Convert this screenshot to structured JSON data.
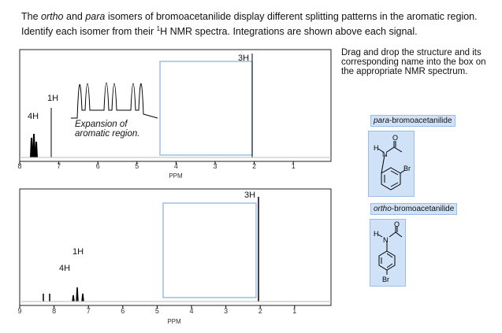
{
  "question": [
    "The ",
    "ortho",
    " and ",
    "para",
    " isomers of bromoacetanilide display different splitting patterns in the aromatic region. Identify each isomer from their ",
    "1",
    "H NMR spectra. Integrations are shown above each signal."
  ],
  "instructions": "Drag and drop the structure and its corresponding name into the box on the appropriate NMR spectrum.",
  "spectra": [
    {
      "integrations": [
        "4H",
        "1H",
        "3H"
      ],
      "annotation": [
        "Expansion of",
        "aromatic region."
      ],
      "axis_ticks": [
        "8",
        "7",
        "6",
        "5",
        "4",
        "3",
        "2",
        "1"
      ],
      "axis_label": "PPM"
    },
    {
      "integrations": [
        "3H",
        "1H",
        "4H"
      ],
      "axis_ticks": [
        "9",
        "8",
        "7",
        "6",
        "5",
        "4",
        "3",
        "2",
        "1"
      ],
      "axis_label": "PPM"
    }
  ],
  "cards": [
    {
      "name": [
        "para",
        "-bromoacetanilide"
      ],
      "atoms": [
        "H",
        "N",
        "O",
        "Br"
      ]
    },
    {
      "name": [
        "ortho",
        "-bromoacetanilide"
      ],
      "atoms": [
        "H",
        "N",
        "O",
        "Br"
      ]
    }
  ]
}
